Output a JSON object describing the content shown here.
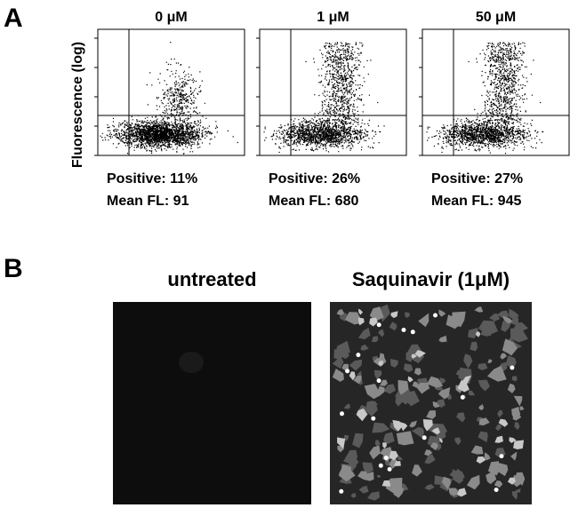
{
  "panels": [
    {
      "label": "A",
      "y_axis_label": "Fluorescence (log)",
      "plots": [
        {
          "title": "0 μM",
          "positive": "Positive: 11%",
          "mean": "Mean FL: 91"
        },
        {
          "title": "1 μM",
          "positive": "Positive: 26%",
          "mean": "Mean FL: 680"
        },
        {
          "title": "50 μM",
          "positive": "Positive: 27%",
          "mean": "Mean FL: 945"
        }
      ]
    },
    {
      "label": "B",
      "images": [
        {
          "title": "untreated"
        },
        {
          "title": "Saquinavir (1μM)"
        }
      ]
    }
  ]
}
